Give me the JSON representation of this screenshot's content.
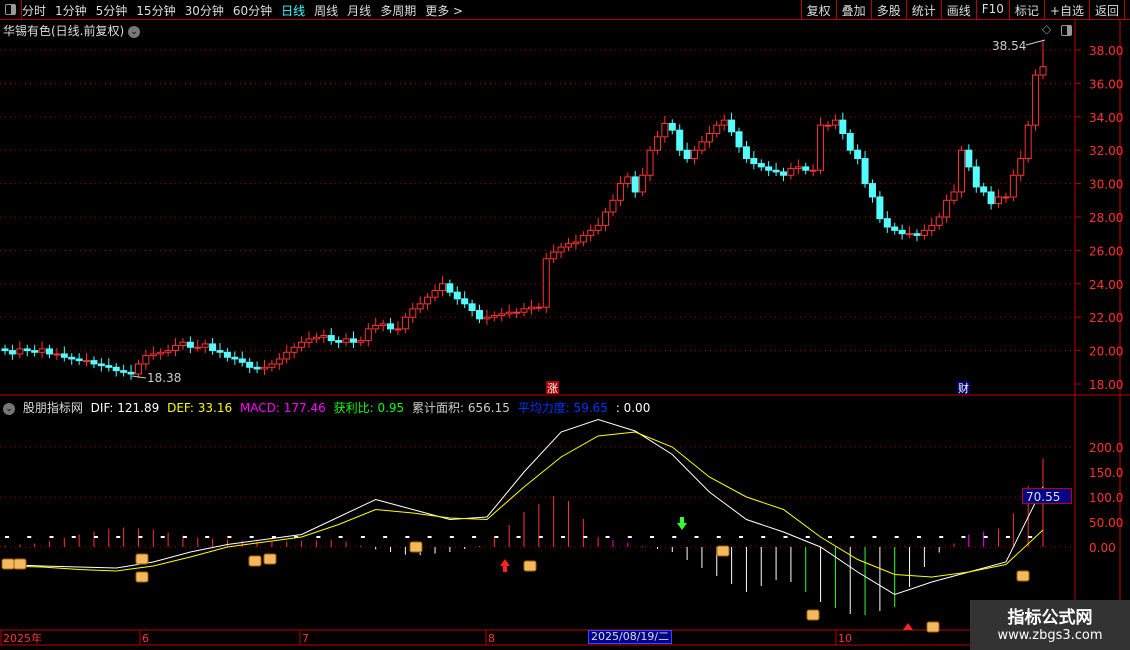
{
  "toolbar": {
    "periods": [
      "分时",
      "1分钟",
      "5分钟",
      "15分钟",
      "30分钟",
      "60分钟",
      "日线",
      "周线",
      "月线",
      "多周期",
      "更多 >"
    ],
    "active_period": "日线",
    "buttons": [
      "复权",
      "叠加",
      "多股",
      "统计",
      "画线",
      "F10",
      "标记",
      "+自选",
      "返回"
    ]
  },
  "title": "华锡有色(日线.前复权)",
  "price_chart": {
    "high_label": "38.54",
    "low_label": "18.38",
    "markers": {
      "zhang": "涨",
      "cai": "财"
    },
    "y_ticks": [
      "38.00",
      "36.00",
      "34.00",
      "32.00",
      "30.00",
      "28.00",
      "26.00",
      "24.00",
      "22.00",
      "20.00",
      "18.00"
    ],
    "closes": [
      20.0,
      19.8,
      20.1,
      20.0,
      19.9,
      20.1,
      19.8,
      19.8,
      19.6,
      19.5,
      19.4,
      19.4,
      19.2,
      19.1,
      19.0,
      18.8,
      18.7,
      18.6,
      19.2,
      19.7,
      19.8,
      19.9,
      20.0,
      20.3,
      20.5,
      20.2,
      20.2,
      20.4,
      20.0,
      19.9,
      19.6,
      19.5,
      19.3,
      19.0,
      18.9,
      19.0,
      19.2,
      19.5,
      19.9,
      20.2,
      20.5,
      20.7,
      20.8,
      20.9,
      20.6,
      20.5,
      20.7,
      20.5,
      20.6,
      21.3,
      21.5,
      21.6,
      21.3,
      21.3,
      22.0,
      22.5,
      22.8,
      23.2,
      23.6,
      24.0,
      23.5,
      23.1,
      22.8,
      22.4,
      21.9,
      22.0,
      22.1,
      22.2,
      22.3,
      22.3,
      22.5,
      22.6,
      22.6,
      25.5,
      25.9,
      26.2,
      26.4,
      26.5,
      26.9,
      27.2,
      27.5,
      28.3,
      29.0,
      30.0,
      30.4,
      29.5,
      30.5,
      32.0,
      32.8,
      33.6,
      33.2,
      32.0,
      31.5,
      32.0,
      32.5,
      33.0,
      33.5,
      33.8,
      33.1,
      32.2,
      31.5,
      31.2,
      31.0,
      30.8,
      30.7,
      30.5,
      30.9,
      31.0,
      30.8,
      30.8,
      33.5,
      33.5,
      33.8,
      33.0,
      32.0,
      31.5,
      30.0,
      29.2,
      27.9,
      27.4,
      27.2,
      27.0,
      27.0,
      26.9,
      27.2,
      27.5,
      28.0,
      29.0,
      29.5,
      32.0,
      31.0,
      29.8,
      29.5,
      28.8,
      29.2,
      29.2,
      30.5,
      31.5,
      33.5,
      36.5,
      37.0
    ],
    "up_color": "#ff3333",
    "down_color": "#54ffff"
  },
  "indicator": {
    "name": "股朋指标网",
    "dif_label": "DIF: 121.89",
    "def_label": "DEF: 33.16",
    "macd_label": "MACD: 177.46",
    "profit_ratio_label": "获利比: 0.95",
    "area_label": "累计面积: 656.15",
    "avg_force_label": "平均力度: 59.65",
    "extra_label": ": 0.00",
    "y_ticks": [
      "200.0",
      "150.0",
      "100.0",
      "50.00",
      "0.00"
    ],
    "current_value": "70.55",
    "dif_every5": [
      -35,
      -38,
      -40,
      -42,
      -30,
      -10,
      5,
      15,
      25,
      60,
      95,
      75,
      55,
      60,
      150,
      230,
      255,
      232,
      185,
      110,
      55,
      30,
      0,
      -50,
      -95,
      -70,
      -50,
      -30,
      120
    ],
    "dea_every5": [
      -38,
      -40,
      -45,
      -48,
      -38,
      -20,
      0,
      10,
      20,
      45,
      75,
      68,
      58,
      55,
      120,
      180,
      222,
      230,
      200,
      140,
      100,
      75,
      20,
      -25,
      -55,
      -60,
      -50,
      -35,
      34
    ],
    "hist_every5": [
      3,
      8,
      25,
      40,
      35,
      20,
      15,
      10,
      12,
      15,
      -5,
      -18,
      -10,
      5,
      70,
      110,
      20,
      5,
      -10,
      -50,
      -90,
      -60,
      -110,
      -140,
      -120,
      -20,
      25,
      40,
      177
    ],
    "colors": {
      "dif": "#ffffff",
      "dea": "#ffff00",
      "macd": "#ff00ff",
      "profit": "#00ff00",
      "avg": "#0033ff"
    }
  },
  "time_axis": {
    "labels": [
      "2025年",
      "6",
      "7",
      "8",
      "10"
    ],
    "cursor_date": "2025/08/19/二"
  },
  "watermark": {
    "title": "指标公式网",
    "url": "www.zbgs3.com"
  }
}
